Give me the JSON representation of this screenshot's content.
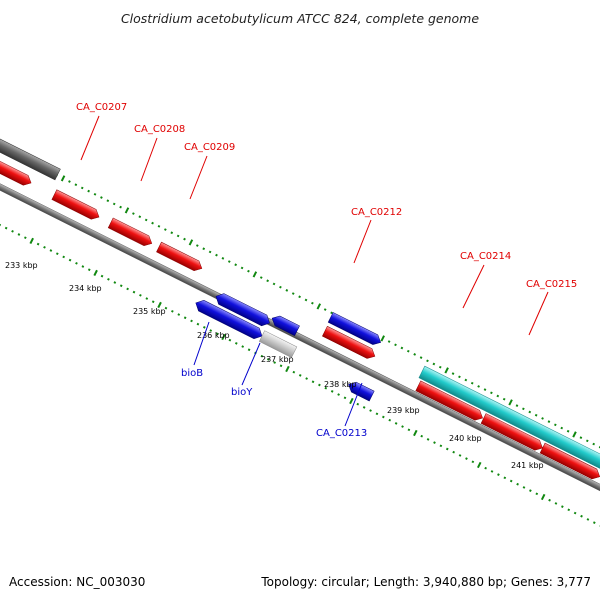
{
  "header": {
    "title": "Clostridium acetobutylicum ATCC 824, complete genome"
  },
  "footer": {
    "accession": "Accession: NC_003030",
    "topology": "Topology: circular; Length: 3,940,880 bp; Genes: 3,777"
  },
  "colors": {
    "forward_gene": "#ee1111",
    "reverse_gene": "#1111dd",
    "cyan_feature": "#22cccc",
    "gray_feature": "#666666",
    "light_gray_feature": "#cccccc",
    "backbone": "#777777",
    "tick_marks": "#118811",
    "label_forward": "#e00000",
    "label_reverse": "#0000cc"
  },
  "kbp_ticks": [
    "233 kbp",
    "234 kbp",
    "235 kbp",
    "236 kbp",
    "237 kbp",
    "238 kbp",
    "239 kbp",
    "240 kbp",
    "241 kbp"
  ],
  "gene_labels": {
    "CA_C0207": "CA_C0207",
    "CA_C0208": "CA_C0208",
    "CA_C0209": "CA_C0209",
    "CA_C0212": "CA_C0212",
    "CA_C0214": "CA_C0214",
    "CA_C0215": "CA_C0215",
    "bioB": "bioB",
    "bioY": "bioY",
    "CA_C0213": "CA_C0213"
  }
}
